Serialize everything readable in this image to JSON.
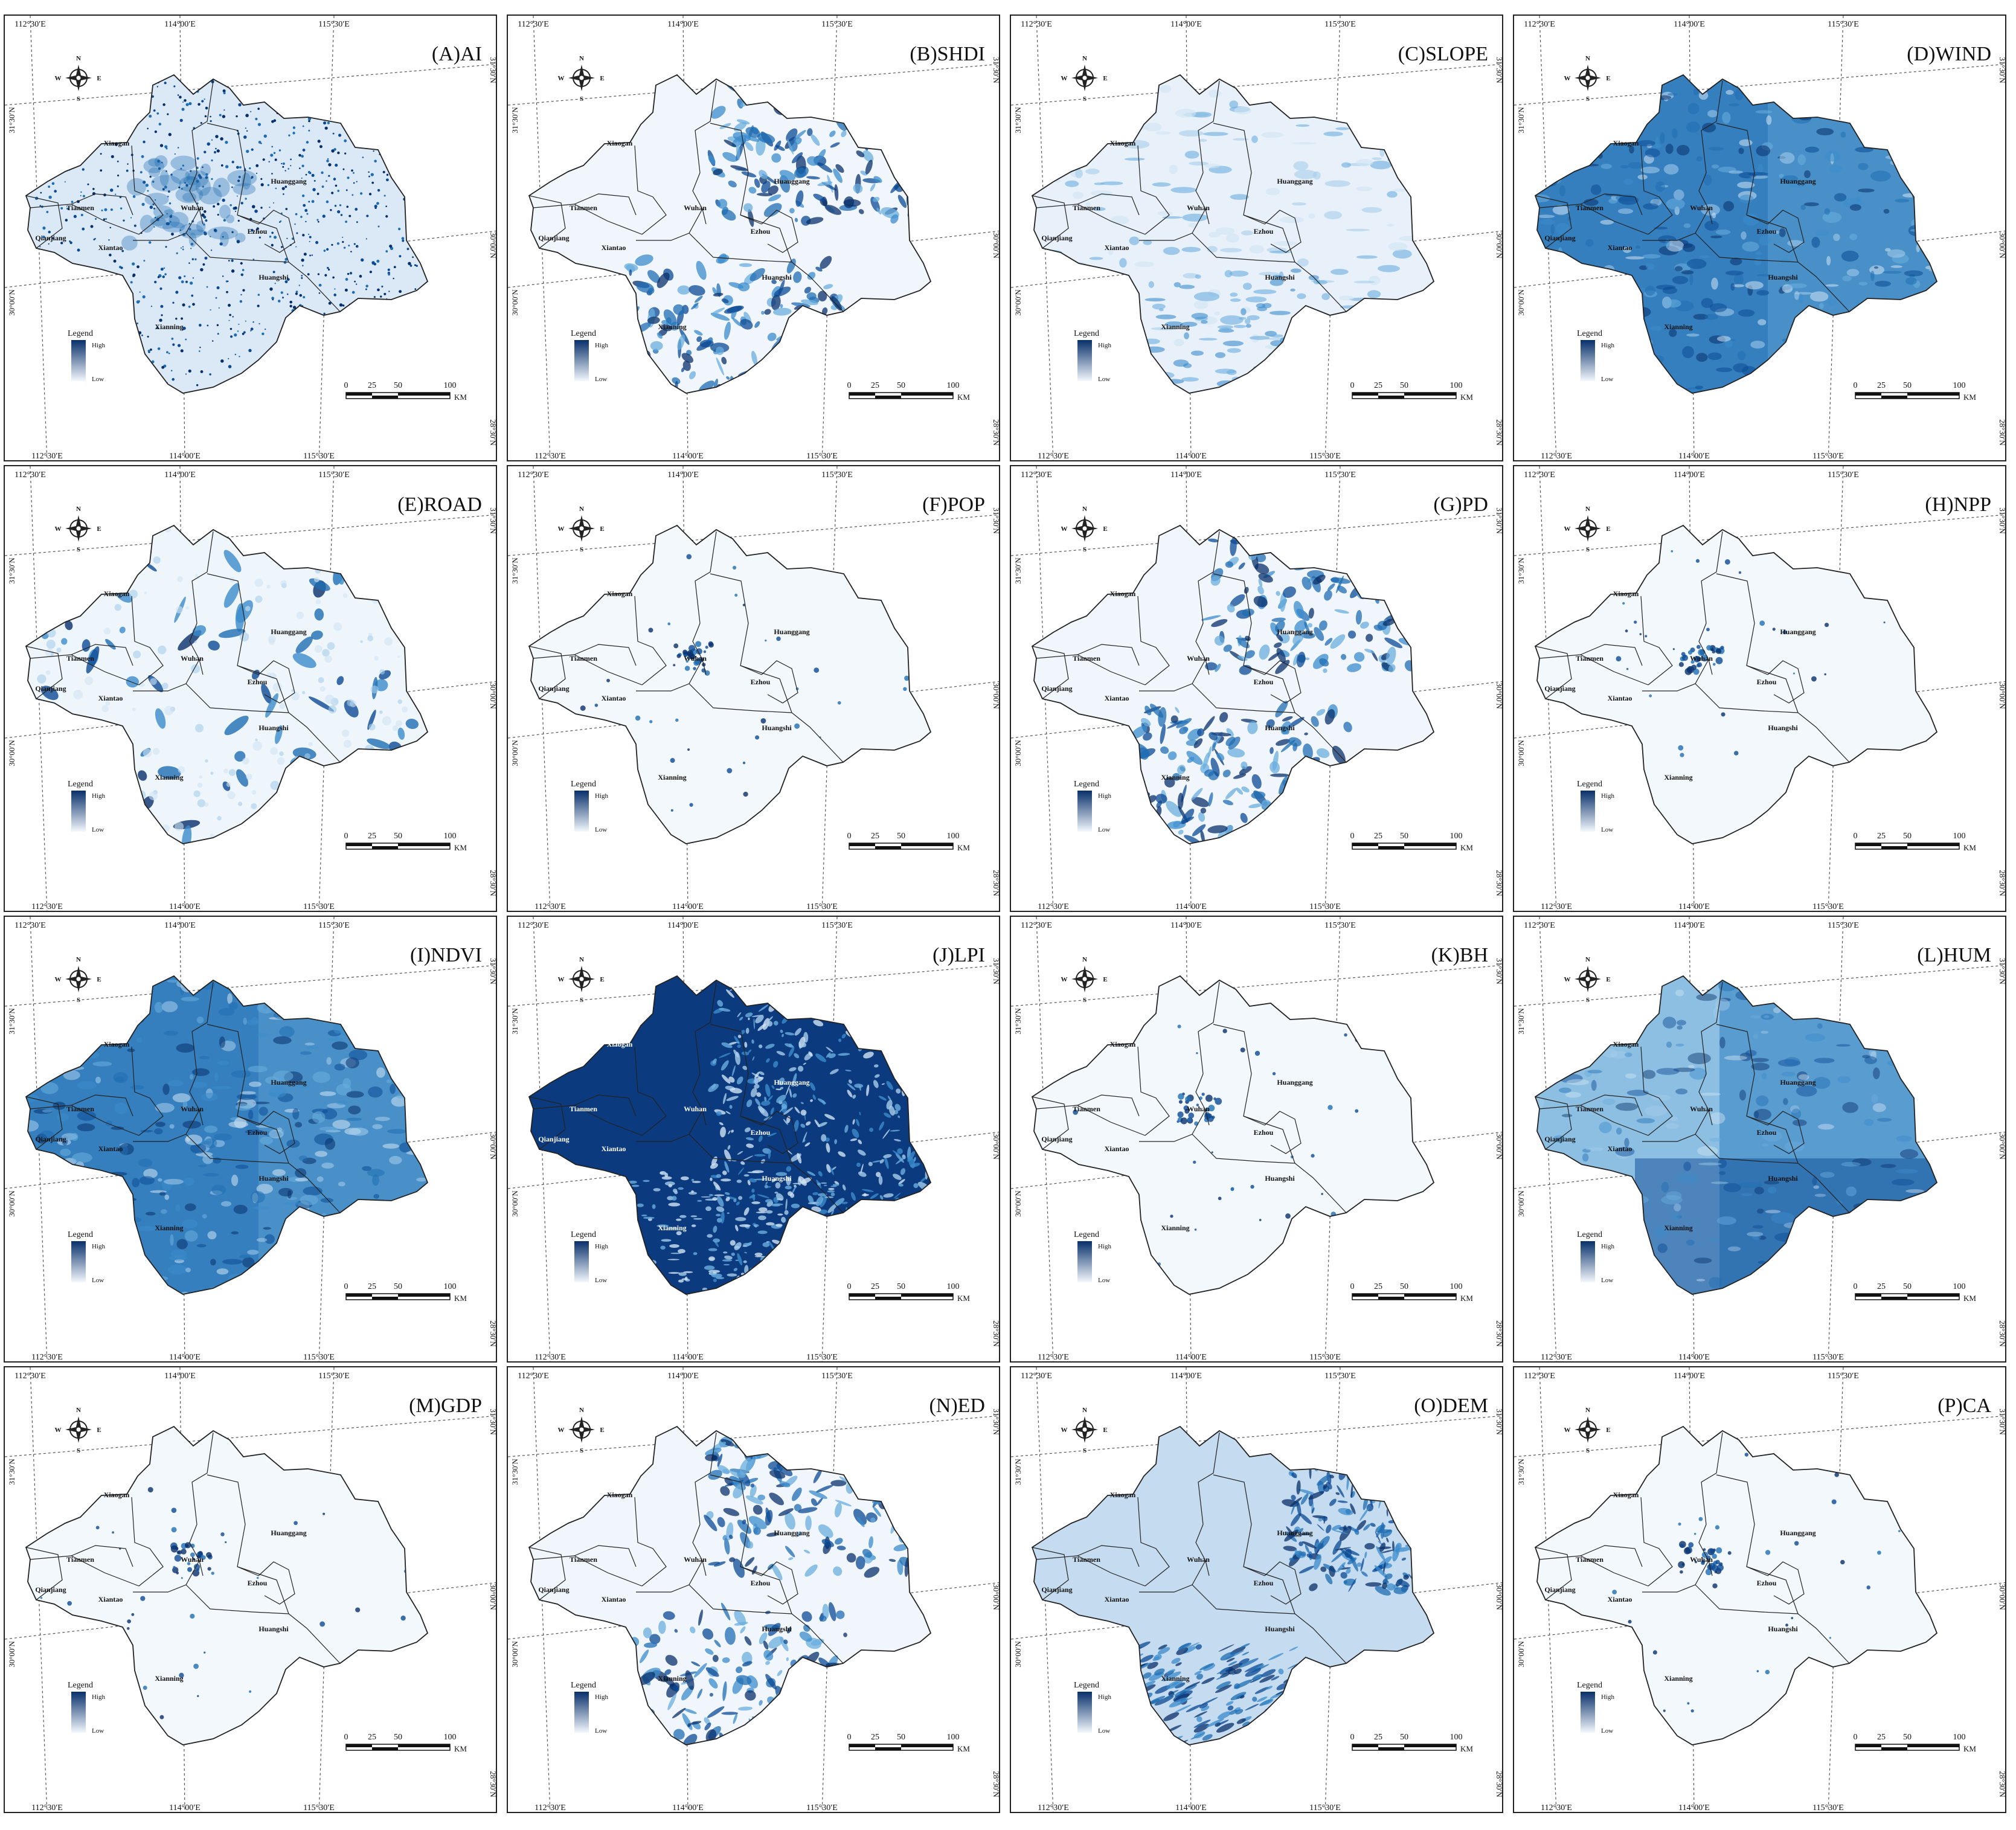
{
  "figure": {
    "colors": {
      "high": "#08306b",
      "mid": "#2f7fc1",
      "low": "#f3f8fd",
      "line": "#222222",
      "grid": "#555555"
    },
    "legend": {
      "title": "Legend",
      "high": "High",
      "low": "Low"
    },
    "scalebar": {
      "ticks": [
        "0",
        "25",
        "50",
        "100"
      ],
      "unit": "KM"
    },
    "compass": {
      "n": "N",
      "s": "S",
      "e": "E",
      "w": "W"
    },
    "lon_labels": [
      "112°30′E",
      "114°00′E",
      "115°30′E"
    ],
    "lat_labels_left": [
      "31°30′N",
      "30°00′N"
    ],
    "lat_labels_right": [
      "31°30′N",
      "30°00′N",
      "28°30′N"
    ],
    "cities": [
      "Xiaogan",
      "Huanggang",
      "Tianmen",
      "Wuhan",
      "Ezhou",
      "Qianjiang",
      "Xiantao",
      "Huangshi",
      "Xianning"
    ],
    "panels": [
      {
        "title": "(A)AI",
        "pattern": "dots"
      },
      {
        "title": "(B)SHDI",
        "pattern": "patchy"
      },
      {
        "title": "(C)SLOPE",
        "pattern": "light"
      },
      {
        "title": "(D)WIND",
        "pattern": "dense"
      },
      {
        "title": "(E)ROAD",
        "pattern": "blobs"
      },
      {
        "title": "(F)POP",
        "pattern": "sparse"
      },
      {
        "title": "(G)PD",
        "pattern": "patchy"
      },
      {
        "title": "(H)NPP",
        "pattern": "sparse"
      },
      {
        "title": "(I)NDVI",
        "pattern": "dense"
      },
      {
        "title": "(J)LPI",
        "pattern": "dark"
      },
      {
        "title": "(K)BH",
        "pattern": "sparse"
      },
      {
        "title": "(L)HUM",
        "pattern": "gradient"
      },
      {
        "title": "(M)GDP",
        "pattern": "sparse"
      },
      {
        "title": "(N)ED",
        "pattern": "patchy"
      },
      {
        "title": "(O)DEM",
        "pattern": "terrain"
      },
      {
        "title": "(P)CA",
        "pattern": "sparse"
      }
    ]
  }
}
